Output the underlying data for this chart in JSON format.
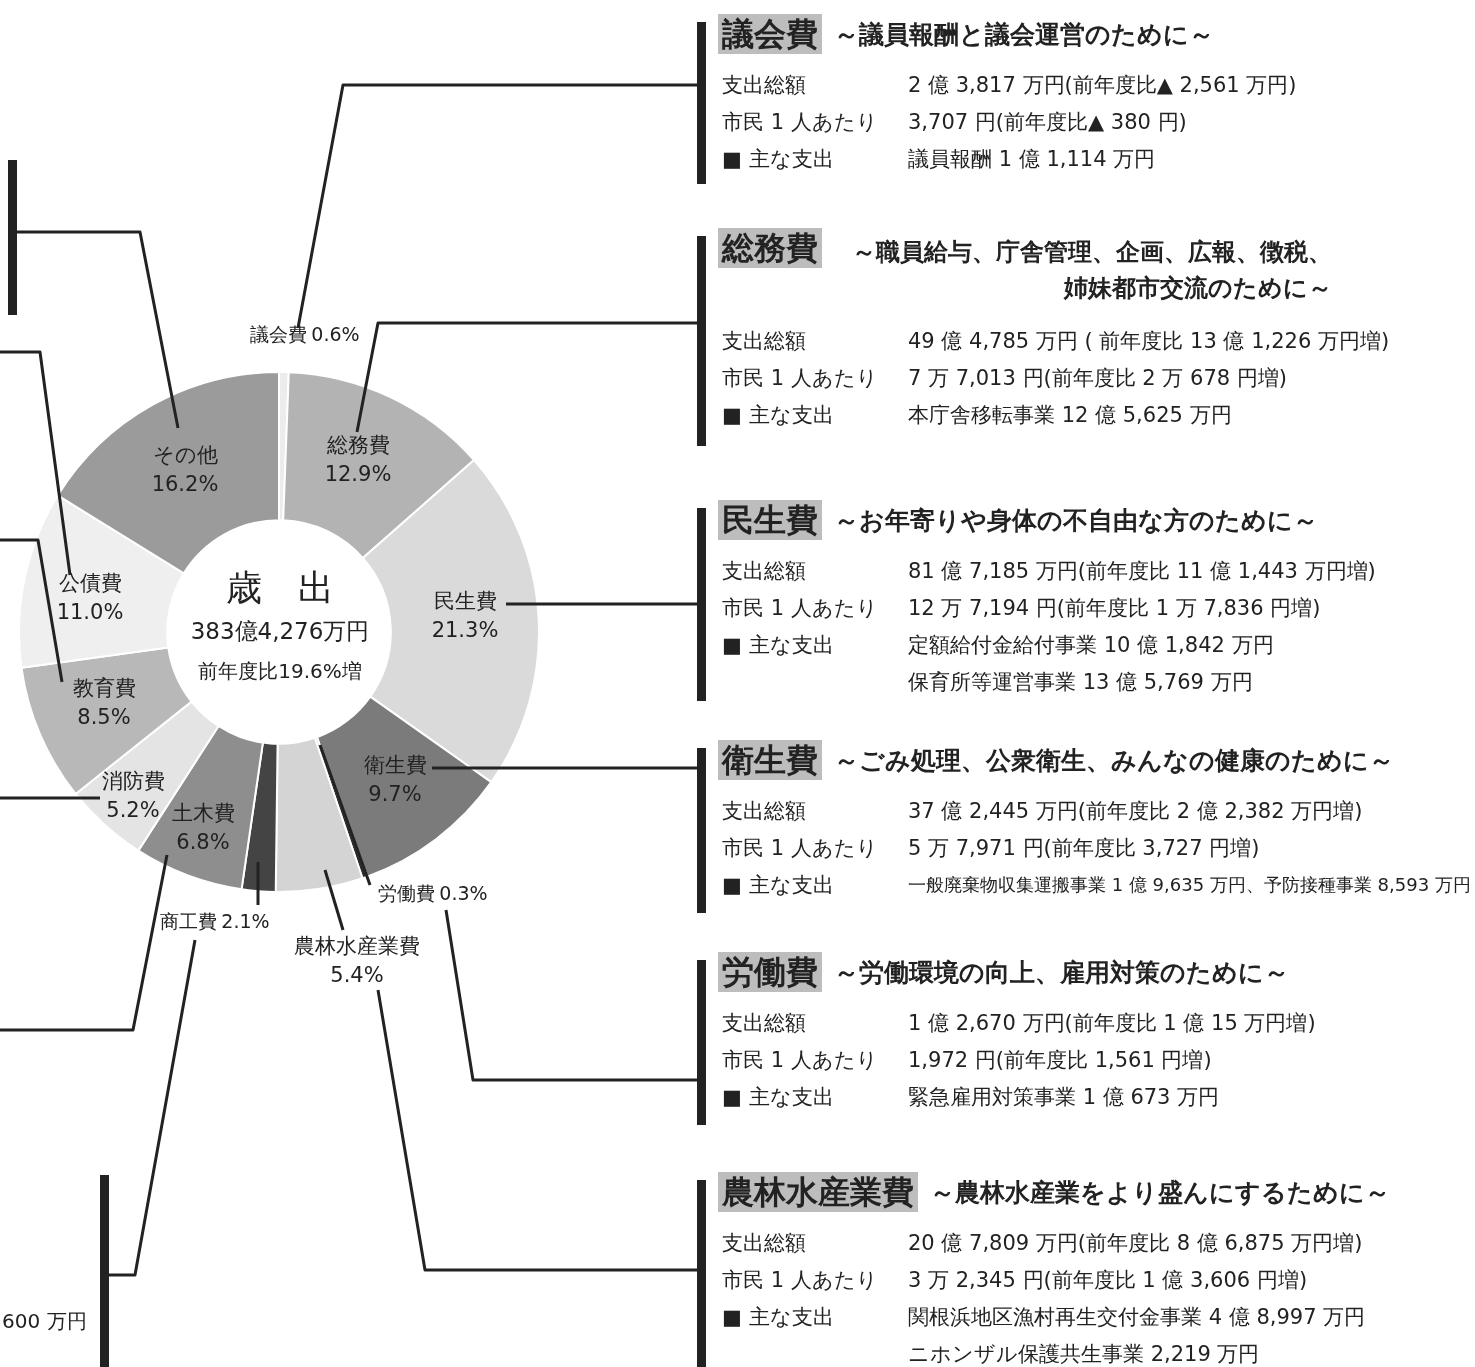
{
  "chart_data": {
    "type": "donut",
    "categories": [
      "議会費",
      "総務費",
      "民生費",
      "衛生費",
      "労働費",
      "農林水産業費",
      "商工費",
      "土木費",
      "消防費",
      "教育費",
      "公債費",
      "その他"
    ],
    "values": [
      0.6,
      12.9,
      21.3,
      9.7,
      0.3,
      5.4,
      2.1,
      6.8,
      5.2,
      8.5,
      11.0,
      16.2
    ],
    "value_labels": [
      "0.6%",
      "12.9%",
      "21.3%",
      "9.7%",
      "0.3%",
      "5.4%",
      "2.1%",
      "6.8%",
      "5.2%",
      "8.5%",
      "11.0%",
      "16.2%"
    ],
    "colors": [
      "#ececec",
      "#b3b3b3",
      "#dadada",
      "#7b7b7b",
      "#2e2e2e",
      "#d4d4d4",
      "#444444",
      "#8e8e8e",
      "#e4e4e4",
      "#b8b8b8",
      "#efefef",
      "#9b9b9b"
    ],
    "legend": false,
    "annotations": [
      "議会費",
      "～議員報酬と議会運営のために～",
      "支出総額",
      "2 億 3,817 万円(前年度比▲ 2,561 万円)",
      "市民 1 人あたり",
      "3,707 円(前年度比▲ 380 円)",
      "■ 主な支出",
      "議員報酬 1 億 1,114 万円",
      "総務費",
      "～職員給与、庁舎管理、企画、広報、徴税、姉妹都市交流のために～",
      "支出総額",
      "49 億 4,785 万円 ( 前年度比 13 億 1,226 万円増)",
      "市民 1 人あたり",
      "7 万 7,013 円(前年度比 2 万 678 円増)",
      "■ 主な支出",
      "本庁舎移転事業 12 億 5,625 万円",
      "民生費",
      "～お年寄りや身体の不自由な方のために～",
      "支出総額",
      "81 億 7,185 万円(前年度比 11 億 1,443 万円増)",
      "市民 1 人あたり",
      "12 万 7,194 円(前年度比 1 万 7,836 円増)",
      "■ 主な支出",
      "定額給付金給付事業 10 億 1,842 万円",
      "保育所等運営事業 13 億 5,769 万円",
      "衛生費",
      "～ごみ処理、公衆衛生、みんなの健康のために～",
      "支出総額",
      "37 億 2,445 万円(前年度比 2 億 2,382 万円増)",
      "市民 1 人あたり",
      "5 万 7,971 円(前年度比 3,727 円増)",
      "■ 主な支出",
      "一般廃棄物収集運搬事業 1 億 9,635 万円、予防接種事業 8,593 万円",
      "労働費",
      "～労働環境の向上、雇用対策のために～",
      "支出総額",
      "1 億 2,670 万円(前年度比 1 億 15 万円増)",
      "市民 1 人あたり",
      "1,972 円(前年度比 1,561 円増)",
      "■ 主な支出",
      "緊急雇用対策事業 1 億 673 万円",
      "農林水産業費",
      "～農林水産業をより盛んにするために～",
      "支出総額",
      "20 億 7,809 万円(前年度比 8 億 6,875 万円増)",
      "市民 1 人あたり",
      "3 万 2,345 円(前年度比 1 億 3,606 円増)",
      "■ 主な支出",
      "関根浜地区漁村再生交付金事業 4 億 8,997 万円",
      "ニホンザル保護共生事業 2,219 万円",
      "歳　出",
      "383億4,276万円",
      "前年度比19.6%増",
      "600 万円"
    ]
  }
}
